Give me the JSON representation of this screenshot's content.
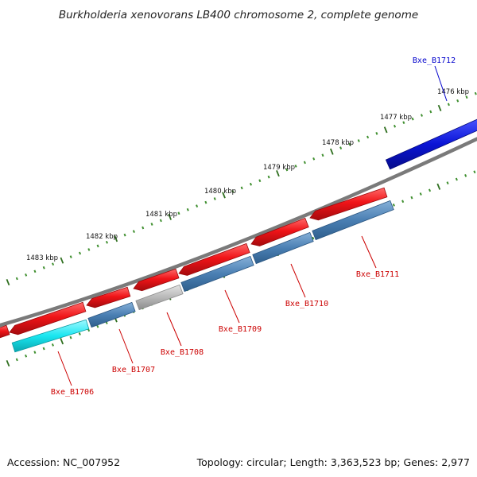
{
  "title": "Burkholderia xenovorans LB400 chromosome 2, complete genome",
  "footer": {
    "accession": "Accession: NC_007952",
    "summary": "Topology: circular; Length: 3,363,523 bp; Genes: 2,977"
  },
  "colors": {
    "backbone": "#7a7a7a",
    "tick_major": "#2f6f1f",
    "tick_minor": "#3f8f2f",
    "forward_gene_label": "#0000cc",
    "reverse_gene_label": "#cc0000",
    "cds": "#e8141a",
    "forward_gene": "#0a14d6",
    "reverse_gene": "#4a7fb3",
    "cyan_gene": "#19e6f0",
    "pseudo_gene": "#b8b8b8"
  },
  "ruler": {
    "unit": "kbp",
    "labels": [
      "1476 kbp",
      "1477 kbp",
      "1478 kbp",
      "1479 kbp",
      "1480 kbp",
      "1481 kbp",
      "1482 kbp",
      "1483 kbp"
    ]
  },
  "genes": {
    "forward": [
      {
        "name": "Bxe_B1712",
        "color_key": "forward_gene"
      }
    ],
    "reverse": [
      {
        "name": "Bxe_B1711",
        "color_key": "reverse_gene"
      },
      {
        "name": "Bxe_B1710",
        "color_key": "reverse_gene"
      },
      {
        "name": "Bxe_B1709",
        "color_key": "reverse_gene"
      },
      {
        "name": "Bxe_B1708",
        "color_key": "pseudo_gene"
      },
      {
        "name": "Bxe_B1707",
        "color_key": "reverse_gene"
      },
      {
        "name": "Bxe_B1706",
        "color_key": "cyan_gene"
      }
    ]
  }
}
